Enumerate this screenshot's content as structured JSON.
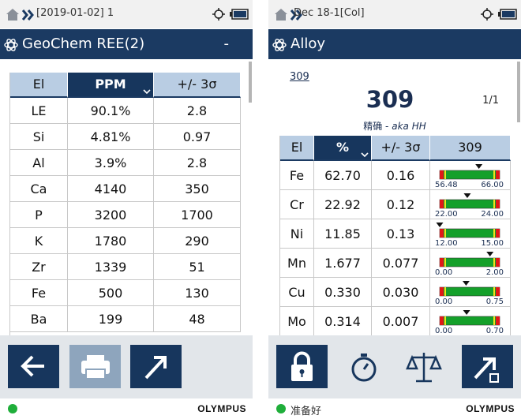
{
  "left": {
    "status": {
      "breadcrumb": "[2019-01-02] 1"
    },
    "title": "GeoChem REE(2)",
    "title_action": "-",
    "table": {
      "header": [
        "El",
        "PPM",
        "+/- 3σ"
      ],
      "active_column": 1,
      "rows": [
        [
          "LE",
          "90.1%",
          "2.8"
        ],
        [
          "Si",
          "4.81%",
          "0.97"
        ],
        [
          "Al",
          "3.9%",
          "2.8"
        ],
        [
          "Ca",
          "4140",
          "350"
        ],
        [
          "P",
          "3200",
          "1700"
        ],
        [
          "K",
          "1780",
          "290"
        ],
        [
          "Zr",
          "1339",
          "51"
        ],
        [
          "Fe",
          "500",
          "130"
        ],
        [
          "Ba",
          "199",
          "48"
        ]
      ]
    },
    "footer": {
      "brand": "OLYMPUS"
    }
  },
  "right": {
    "status": {
      "breadcrumb": "Dec 18-1[Col]"
    },
    "title": "Alloy",
    "link": "309",
    "heading": "309",
    "page": "1/1",
    "subtitle": "精确 -",
    "subtitle_alias": "aka HH",
    "table": {
      "header": [
        "El",
        "%",
        "+/- 3σ",
        "309"
      ],
      "active_column": 1,
      "rows": [
        {
          "el": "Fe",
          "value": "62.70",
          "error": "0.16",
          "range": [
            "56.48",
            "66.00"
          ]
        },
        {
          "el": "Cr",
          "value": "22.92",
          "error": "0.12",
          "range": [
            "22.00",
            "24.00"
          ]
        },
        {
          "el": "Ni",
          "value": "11.85",
          "error": "0.13",
          "range": [
            "12.00",
            "15.00"
          ]
        },
        {
          "el": "Mn",
          "value": "1.677",
          "error": "0.077",
          "range": [
            "0.00",
            "2.00"
          ]
        },
        {
          "el": "Cu",
          "value": "0.330",
          "error": "0.030",
          "range": [
            "0.00",
            "0.75"
          ]
        },
        {
          "el": "Mo",
          "value": "0.314",
          "error": "0.007",
          "range": [
            "0.00",
            "0.70"
          ]
        }
      ]
    },
    "footer": {
      "status": "准备好",
      "brand": "OLYMPUS"
    }
  }
}
